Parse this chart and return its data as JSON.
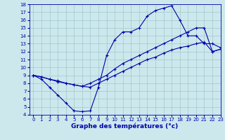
{
  "xlabel": "Graphe des températures (°c)",
  "xlim": [
    -0.5,
    23
  ],
  "ylim": [
    4,
    18
  ],
  "xticks": [
    0,
    1,
    2,
    3,
    4,
    5,
    6,
    7,
    8,
    9,
    10,
    11,
    12,
    13,
    14,
    15,
    16,
    17,
    18,
    19,
    20,
    21,
    22,
    23
  ],
  "yticks": [
    4,
    5,
    6,
    7,
    8,
    9,
    10,
    11,
    12,
    13,
    14,
    15,
    16,
    17,
    18
  ],
  "background_color": "#cce8ec",
  "line_color": "#0000aa",
  "line1_x": [
    0,
    1,
    2,
    3,
    4,
    5,
    6,
    7,
    8,
    9,
    10,
    11,
    12,
    13,
    14,
    15,
    16,
    17,
    18,
    19,
    20,
    21,
    22,
    23
  ],
  "line1_y": [
    9.0,
    8.5,
    7.5,
    6.5,
    5.5,
    4.5,
    4.4,
    4.5,
    7.5,
    11.5,
    13.5,
    14.5,
    14.5,
    15.0,
    16.5,
    17.2,
    17.5,
    17.8,
    16.0,
    14.0,
    14.0,
    13.0,
    13.0,
    12.5
  ],
  "line2_x": [
    0,
    1,
    2,
    3,
    4,
    5,
    6,
    7,
    8,
    9,
    10,
    11,
    12,
    13,
    14,
    15,
    16,
    17,
    18,
    19,
    20,
    21,
    22,
    23
  ],
  "line2_y": [
    9.0,
    8.8,
    8.5,
    8.3,
    8.0,
    7.8,
    7.6,
    8.0,
    8.5,
    9.0,
    9.8,
    10.5,
    11.0,
    11.5,
    12.0,
    12.5,
    13.0,
    13.5,
    14.0,
    14.5,
    15.0,
    15.0,
    12.0,
    12.3
  ],
  "line3_x": [
    0,
    1,
    2,
    3,
    4,
    5,
    6,
    7,
    8,
    9,
    10,
    11,
    12,
    13,
    14,
    15,
    16,
    17,
    18,
    19,
    20,
    21,
    22,
    23
  ],
  "line3_y": [
    9.0,
    8.8,
    8.5,
    8.2,
    8.0,
    7.8,
    7.6,
    7.5,
    8.0,
    8.5,
    9.0,
    9.5,
    10.0,
    10.5,
    11.0,
    11.3,
    11.8,
    12.2,
    12.5,
    12.7,
    13.0,
    13.2,
    12.0,
    12.3
  ],
  "tick_fontsize": 5.0,
  "label_fontsize": 6.5,
  "grid_color": "#a0c8cc"
}
